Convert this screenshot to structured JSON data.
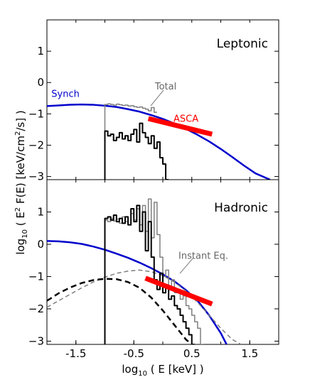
{
  "chart_data": [
    {
      "type": "line",
      "panel": "Leptonic",
      "title": "Leptonic",
      "xlim": [
        -2.0,
        2.0
      ],
      "ylim": [
        -3.1,
        2.0
      ],
      "yticks": [
        1,
        0,
        -1,
        -2,
        -3
      ],
      "ytick_labels": [
        "1",
        "0",
        "−1",
        "−2",
        "−3"
      ],
      "series": [
        {
          "name": "Synch",
          "color": "#0000cc",
          "style": "solid",
          "width": 2.5,
          "x": [
            -2.0,
            -1.8,
            -1.6,
            -1.4,
            -1.2,
            -1.0,
            -0.8,
            -0.6,
            -0.4,
            -0.2,
            0.0,
            0.2,
            0.4,
            0.6,
            0.8,
            1.0,
            1.2,
            1.4,
            1.6,
            1.8,
            1.85
          ],
          "y": [
            -0.75,
            -0.73,
            -0.71,
            -0.7,
            -0.71,
            -0.74,
            -0.78,
            -0.85,
            -0.93,
            -1.04,
            -1.16,
            -1.31,
            -1.48,
            -1.67,
            -1.88,
            -2.12,
            -2.38,
            -2.65,
            -2.9,
            -3.06,
            -3.1
          ]
        },
        {
          "name": "Total",
          "color": "#7f7f7f",
          "style": "step",
          "width": 1.5,
          "x": [
            -1.0,
            -0.95,
            -0.9,
            -0.85,
            -0.8,
            -0.75,
            -0.7,
            -0.65,
            -0.6,
            -0.55,
            -0.5,
            -0.45,
            -0.4,
            -0.35,
            -0.3,
            -0.25,
            -0.2,
            -0.15
          ],
          "y": [
            -0.7,
            -0.68,
            -0.7,
            -0.72,
            -0.69,
            -0.71,
            -0.73,
            -0.72,
            -0.75,
            -0.74,
            -0.77,
            -0.79,
            -0.78,
            -0.82,
            -0.85,
            -0.9,
            -0.8,
            -0.95
          ]
        },
        {
          "name": "",
          "color": "#000000",
          "style": "step",
          "width": 2,
          "x": [
            -1.0,
            -0.95,
            -0.9,
            -0.85,
            -0.8,
            -0.75,
            -0.7,
            -0.65,
            -0.6,
            -0.55,
            -0.5,
            -0.45,
            -0.4,
            -0.35,
            -0.3,
            -0.25,
            -0.2,
            -0.15,
            -0.1,
            -0.05,
            0.0,
            0.05
          ],
          "y": [
            -1.55,
            -1.7,
            -1.65,
            -1.85,
            -1.75,
            -1.6,
            -1.8,
            -1.7,
            -1.85,
            -1.65,
            -1.5,
            -1.9,
            -1.3,
            -1.6,
            -1.75,
            -1.95,
            -1.7,
            -2.1,
            -1.9,
            -2.4,
            -2.6,
            -3.1
          ]
        },
        {
          "name": "ASCA",
          "color": "#ff0000",
          "style": "solid",
          "width": 7,
          "x": [
            -0.25,
            0.85
          ],
          "y": [
            -1.15,
            -1.65
          ]
        }
      ],
      "annotations": [
        {
          "text": "Synch",
          "color": "#0000cc",
          "x": -1.68,
          "y": -0.46
        },
        {
          "text": "Total",
          "color": "#666666",
          "x": 0.05,
          "y": -0.22
        },
        {
          "text": "ASCA",
          "color": "#ff0000",
          "x": 0.4,
          "y": -1.25
        }
      ]
    },
    {
      "type": "line",
      "panel": "Hadronic",
      "title": "Hadronic",
      "xlim": [
        -2.0,
        2.0
      ],
      "ylim": [
        -3.1,
        2.0
      ],
      "yticks": [
        1,
        0,
        -1,
        -2,
        -3
      ],
      "ytick_labels": [
        "1",
        "0",
        "−1",
        "−2",
        "−3"
      ],
      "xticks": [
        -1.5,
        -0.5,
        0.5,
        1.5
      ],
      "xtick_labels": [
        "-1.5",
        "-0.5",
        "0.5",
        "1.5"
      ],
      "xlabel_pre": "log",
      "xlabel_sub": "10",
      "xlabel_post": " ( E [keV] )",
      "series": [
        {
          "name": "Synch",
          "color": "#0000cc",
          "style": "solid",
          "width": 2.5,
          "x": [
            -2.0,
            -1.8,
            -1.6,
            -1.4,
            -1.2,
            -1.0,
            -0.8,
            -0.6,
            -0.4,
            -0.2,
            0.0,
            0.2,
            0.4,
            0.6,
            0.8,
            1.0,
            1.1
          ],
          "y": [
            0.1,
            0.09,
            0.06,
            0.01,
            -0.07,
            -0.17,
            -0.29,
            -0.42,
            -0.57,
            -0.74,
            -0.93,
            -1.15,
            -1.42,
            -1.75,
            -2.2,
            -2.75,
            -3.1
          ]
        },
        {
          "name": "Instant Eq.",
          "color": "#7f7f7f",
          "style": "dashed",
          "width": 1.5,
          "x": [
            -2.0,
            -1.8,
            -1.6,
            -1.4,
            -1.2,
            -1.0,
            -0.8,
            -0.6,
            -0.4,
            -0.2,
            0.0,
            0.2,
            0.4,
            0.6,
            0.8,
            1.0,
            1.2,
            1.35
          ],
          "y": [
            -1.95,
            -1.75,
            -1.55,
            -1.35,
            -1.17,
            -1.02,
            -0.9,
            -0.83,
            -0.8,
            -0.85,
            -0.97,
            -1.17,
            -1.45,
            -1.8,
            -2.2,
            -2.6,
            -2.95,
            -3.1
          ]
        },
        {
          "name": "",
          "color": "#000000",
          "style": "dashed",
          "width": 2.5,
          "x": [
            -2.0,
            -1.8,
            -1.6,
            -1.4,
            -1.2,
            -1.0,
            -0.8,
            -0.6,
            -0.4,
            -0.2,
            0.0,
            0.2,
            0.4,
            0.5
          ],
          "y": [
            -1.75,
            -1.52,
            -1.34,
            -1.2,
            -1.11,
            -1.07,
            -1.08,
            -1.17,
            -1.35,
            -1.65,
            -2.05,
            -2.5,
            -2.95,
            -3.1
          ]
        },
        {
          "name": "",
          "color": "#7f7f7f",
          "style": "step",
          "width": 1.5,
          "x": [
            -1.0,
            -0.95,
            -0.9,
            -0.85,
            -0.8,
            -0.75,
            -0.7,
            -0.65,
            -0.6,
            -0.55,
            -0.5,
            -0.45,
            -0.4,
            -0.35,
            -0.3,
            -0.25,
            -0.2,
            -0.15,
            -0.1,
            -0.05,
            0.0,
            0.05,
            0.1,
            0.15,
            0.2,
            0.25,
            0.3,
            0.35,
            0.4,
            0.45,
            0.5,
            0.55,
            0.6,
            0.65
          ],
          "y": [
            0.75,
            0.7,
            0.8,
            0.72,
            0.78,
            0.65,
            0.85,
            0.7,
            0.6,
            0.95,
            0.75,
            1.1,
            0.6,
            1.2,
            0.4,
            1.4,
            0.2,
            1.3,
            0.3,
            -0.4,
            -1.0,
            -0.8,
            -1.3,
            -1.1,
            -1.5,
            -1.4,
            -1.7,
            -1.6,
            -1.9,
            -2.0,
            -2.2,
            -2.4,
            -2.6,
            -3.1
          ]
        },
        {
          "name": "",
          "color": "#000000",
          "style": "step",
          "width": 2,
          "x": [
            -1.0,
            -0.95,
            -0.9,
            -0.85,
            -0.8,
            -0.75,
            -0.7,
            -0.65,
            -0.6,
            -0.55,
            -0.5,
            -0.45,
            -0.4,
            -0.35,
            -0.3,
            -0.25,
            -0.2,
            -0.15,
            -0.1,
            -0.05,
            0.0,
            0.05,
            0.1,
            0.15,
            0.2,
            0.25,
            0.3,
            0.35,
            0.4,
            0.45,
            0.5
          ],
          "y": [
            0.8,
            0.85,
            0.75,
            0.9,
            0.7,
            0.8,
            0.65,
            0.85,
            0.6,
            1.1,
            0.7,
            1.2,
            0.4,
            1.0,
            -0.2,
            0.7,
            -0.4,
            -1.1,
            -1.4,
            -0.9,
            -1.5,
            -1.3,
            -1.7,
            -1.6,
            -1.9,
            -2.0,
            -2.2,
            -2.4,
            -2.6,
            -2.8,
            -3.1
          ]
        },
        {
          "name": "",
          "color": "#ff0000",
          "style": "solid",
          "width": 7,
          "x": [
            -0.3,
            0.85
          ],
          "y": [
            -1.05,
            -1.85
          ]
        }
      ],
      "annotations": [
        {
          "text": "Instant Eq.",
          "color": "#666666",
          "x": 0.7,
          "y": -0.45
        }
      ]
    }
  ],
  "ylabel_pre": "log",
  "ylabel_sub": "10",
  "ylabel_post": " ( E",
  "ylabel_sup": "2",
  "ylabel_mid": " F(E) [keV/cm",
  "ylabel_sup2": "2",
  "ylabel_end": "/s] )"
}
